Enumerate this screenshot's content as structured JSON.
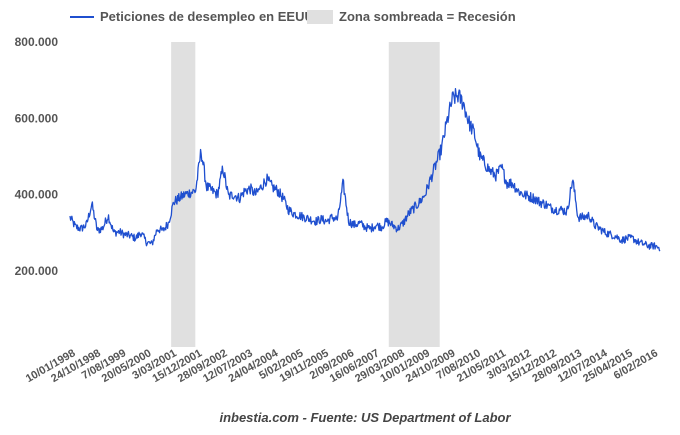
{
  "chart_data": {
    "type": "line",
    "title": "",
    "xlabel": "",
    "ylabel": "",
    "source": "inbestia.com - Fuente: US Department of Labor",
    "legend_placement": "top-left",
    "ylim": [
      0,
      800000
    ],
    "y_ticks": [
      {
        "value": 200000,
        "label": "200.000"
      },
      {
        "value": 400000,
        "label": "400.000"
      },
      {
        "value": 600000,
        "label": "600.000"
      },
      {
        "value": 800000,
        "label": "800.000"
      }
    ],
    "x_ticks": [
      "10/01/1998",
      "24/10/1998",
      "7/08/1999",
      "20/05/2000",
      "3/03/2001",
      "15/12/2001",
      "28/09/2002",
      "12/07/2003",
      "24/04/2004",
      "5/02/2005",
      "19/11/2005",
      "2/09/2006",
      "16/06/2007",
      "29/03/2008",
      "10/01/2009",
      "24/10/2009",
      "7/08/2010",
      "21/05/2011",
      "3/03/2012",
      "15/12/2012",
      "28/09/2013",
      "12/07/2014",
      "25/04/2015",
      "6/02/2016"
    ],
    "grid": false,
    "series": [
      {
        "name": "Peticiones de desempleo en EEUU",
        "color": "#1f4fcf",
        "x_start": "1998-01-10",
        "x_end": "2016-04-30",
        "values": [
          340000,
          315000,
          310000,
          320000,
          375000,
          305000,
          312000,
          345000,
          300000,
          302000,
          295000,
          292000,
          285000,
          300000,
          275000,
          270000,
          310000,
          305000,
          325000,
          380000,
          390000,
          400000,
          405000,
          410000,
          515000,
          420000,
          410000,
          400000,
          470000,
          395000,
          400000,
          390000,
          410000,
          415000,
          400000,
          420000,
          440000,
          420000,
          410000,
          390000,
          360000,
          350000,
          345000,
          340000,
          335000,
          330000,
          335000,
          330000,
          340000,
          335000,
          430000,
          330000,
          320000,
          325000,
          315000,
          310000,
          320000,
          315000,
          330000,
          320000,
          310000,
          325000,
          350000,
          365000,
          380000,
          400000,
          440000,
          480000,
          520000,
          590000,
          650000,
          660000,
          640000,
          590000,
          560000,
          500000,
          480000,
          460000,
          450000,
          470000,
          430000,
          430000,
          410000,
          400000,
          395000,
          390000,
          380000,
          375000,
          365000,
          360000,
          360000,
          355000,
          440000,
          340000,
          340000,
          345000,
          320000,
          310000,
          300000,
          295000,
          290000,
          280000,
          285000,
          285000,
          275000,
          270000,
          265000,
          265000,
          260000
        ]
      }
    ],
    "recessions": [
      {
        "name": "Zona sombreada = Recesión",
        "start": "2001-03-01",
        "end": "2001-11-30",
        "color": "#e0e0e0"
      },
      {
        "name": "Zona sombreada = Recesión",
        "start": "2007-12-01",
        "end": "2009-06-30",
        "color": "#e0e0e0"
      }
    ]
  }
}
